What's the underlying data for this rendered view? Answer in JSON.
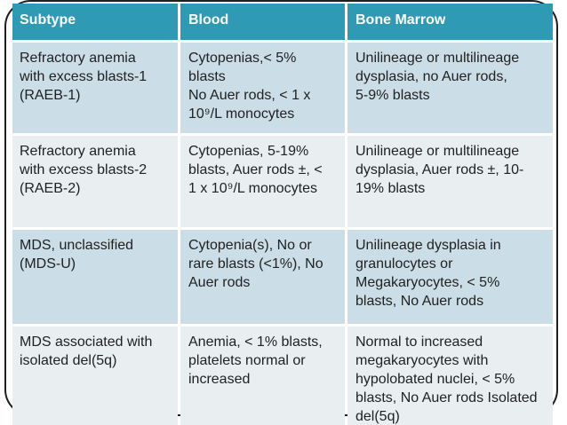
{
  "slide": {
    "frame_border_color": "#1e1e1e",
    "colors": {
      "header_bg": "#2E9AB4",
      "header_text": "#FFFFFF",
      "row_odd_bg": "#CBDDE6",
      "row_even_bg": "#E9EFF1",
      "body_text": "#212121",
      "grid_line": "#FFFFFF"
    }
  },
  "table": {
    "columns": [
      "Subtype",
      "Blood",
      "Bone Marrow"
    ],
    "rows": [
      {
        "subtype": "Refractory anemia with excess blasts-1 (RAEB-1)",
        "blood": "Cytopenias,< 5% blasts\nNo Auer rods, < 1 x 10⁹/L monocytes",
        "bone_marrow": "Unilineage or multilineage dysplasia, no Auer rods, 5‑9% blasts"
      },
      {
        "subtype": "Refractory anemia with excess blasts-2 (RAEB-2)",
        "blood": "Cytopenias, 5-19% blasts, Auer rods ±, < 1 x 10⁹/L monocytes",
        "bone_marrow": "Unilineage or multilineage dysplasia, Auer rods ±, 10-19% blasts"
      },
      {
        "subtype": "MDS, unclassified (MDS-U)",
        "blood": "Cytopenia(s), No or rare blasts (<1%), No Auer rods",
        "bone_marrow": "Unilineage dysplasia in granulocytes or Megakaryocytes, < 5% blasts, No Auer rods"
      },
      {
        "subtype": "MDS associated with isolated del(5q)",
        "blood": "Anemia, < 1% blasts, platelets normal or increased",
        "bone_marrow": "Normal to increased megakaryocytes with hypolobated nuclei, < 5% blasts, No Auer rods Isolated del(5q)"
      }
    ]
  }
}
